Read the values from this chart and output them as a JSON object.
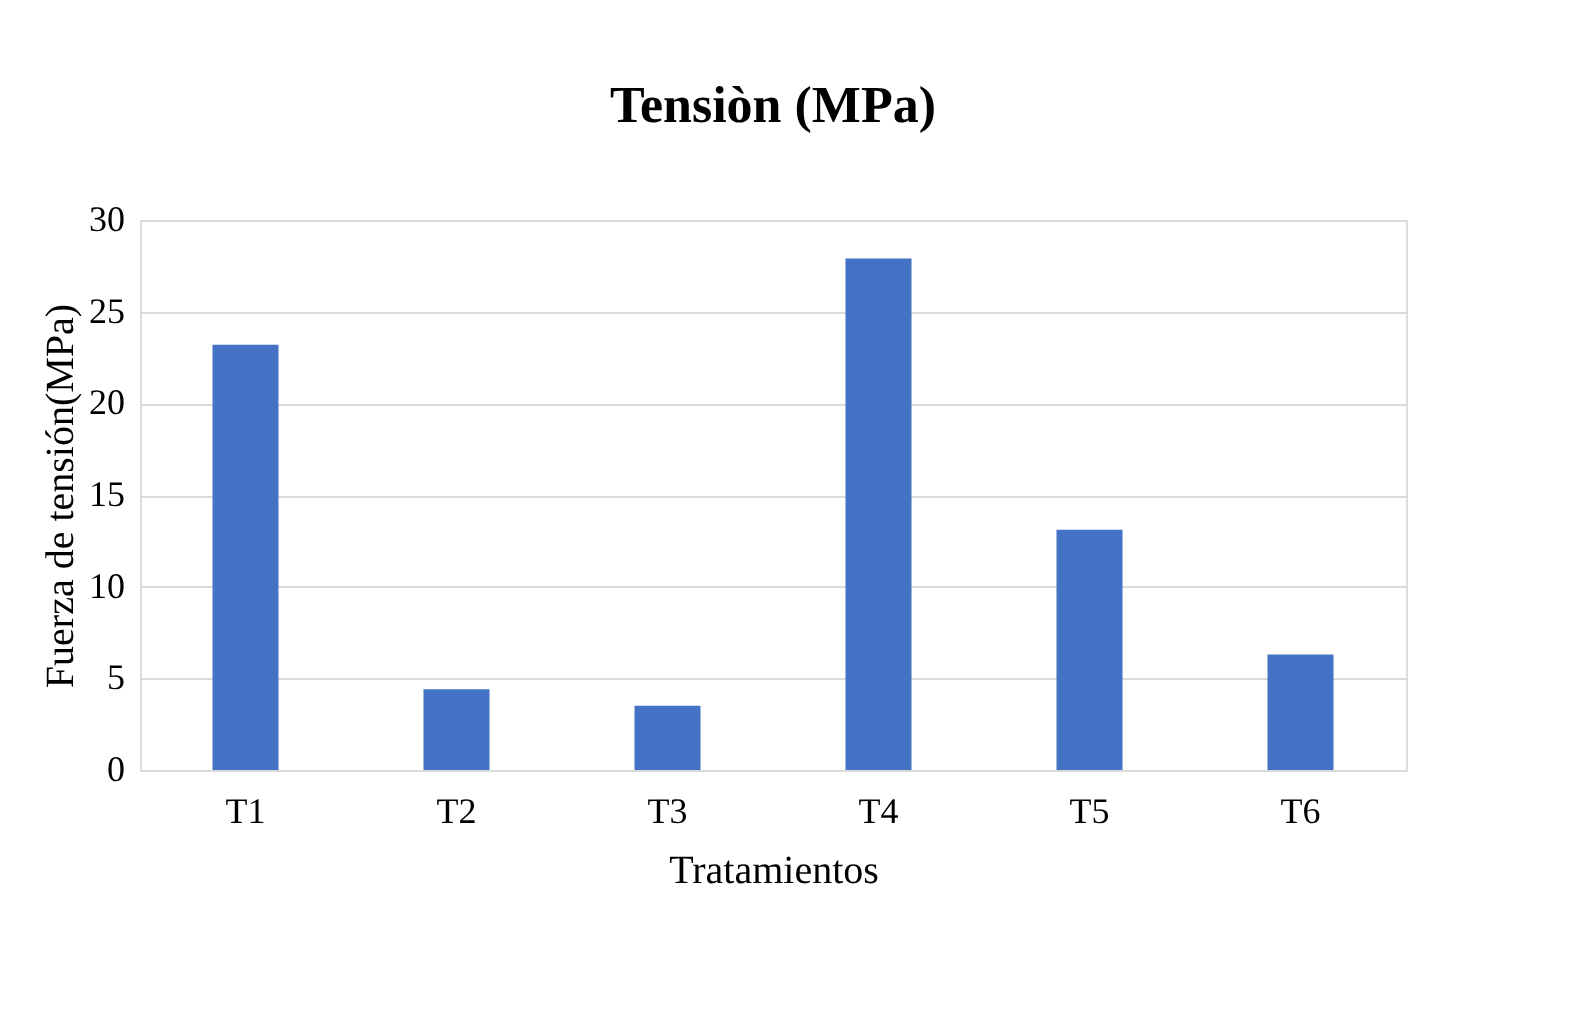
{
  "chart_data": {
    "type": "bar",
    "title": "Tensiòn (MPa)",
    "xlabel": "Tratamientos",
    "ylabel": "Fuerza de tensión(MPa)",
    "categories": [
      "T1",
      "T2",
      "T3",
      "T4",
      "T5",
      "T6"
    ],
    "values": [
      23.2,
      4.4,
      3.5,
      27.9,
      13.1,
      6.3
    ],
    "color": "#4472c4",
    "ylim": [
      0,
      30
    ],
    "yticks": [
      0,
      5,
      10,
      15,
      20,
      25,
      30
    ],
    "grid": "y"
  }
}
